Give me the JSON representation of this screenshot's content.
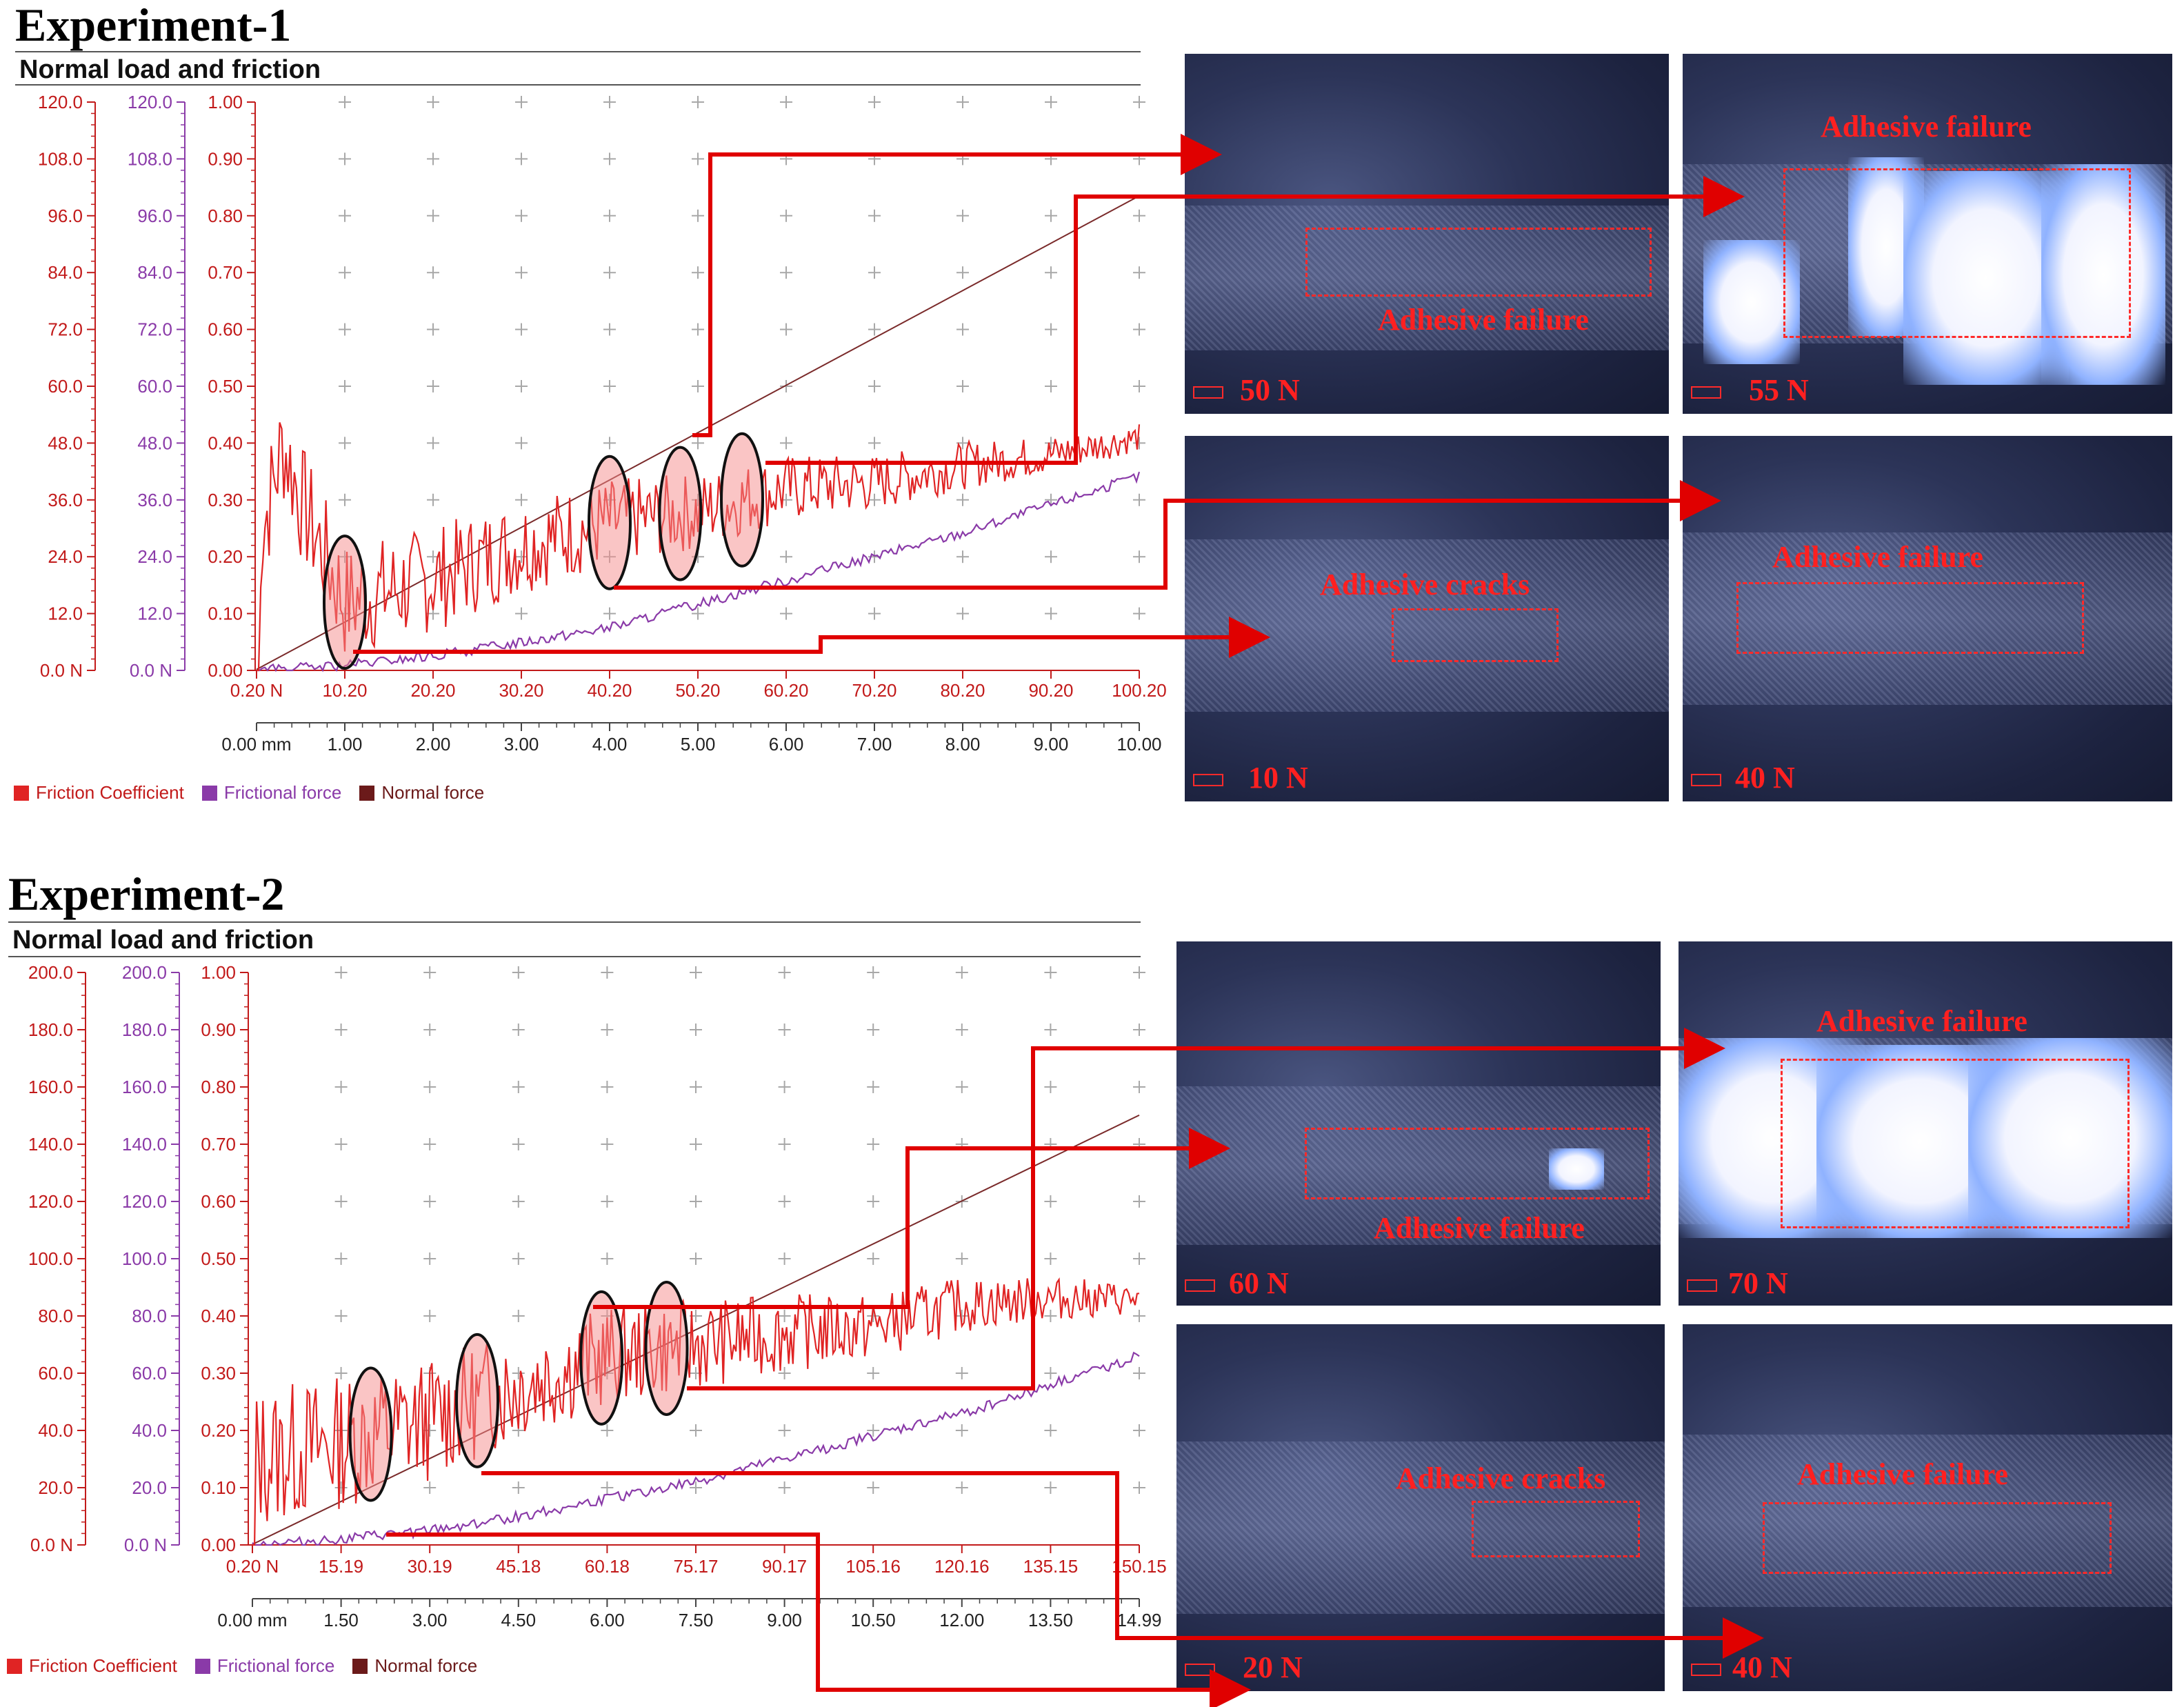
{
  "experiments": [
    {
      "id": "exp1",
      "heading": "Experiment-1",
      "chart_title": "Normal load and friction",
      "legend": [
        "Friction Coefficient",
        "Frictional force",
        "Normal force"
      ],
      "images": [
        {
          "load": "50 N",
          "label": "Adhesive failure"
        },
        {
          "load": "55 N",
          "label": "Adhesive failure"
        },
        {
          "load": "10 N",
          "label": "Adhesive cracks"
        },
        {
          "load": "40 N",
          "label": "Adhesive failure"
        }
      ]
    },
    {
      "id": "exp2",
      "heading": "Experiment-2",
      "chart_title": "Normal load and friction",
      "legend": [
        "Friction Coefficient",
        "Frictional force",
        "Normal force"
      ],
      "images": [
        {
          "load": "60 N",
          "label": "Adhesive failure"
        },
        {
          "load": "70 N",
          "label": "Adhesive failure"
        },
        {
          "load": "20 N",
          "label": "Adhesive cracks"
        },
        {
          "load": "40 N",
          "label": "Adhesive failure"
        }
      ]
    }
  ],
  "colors": {
    "friction_coefficient": "#e02424",
    "frictional_force": "#8a3aa8",
    "normal_force": "#7a2a2a",
    "annotation": "#e00000"
  },
  "chart_data": [
    {
      "type": "line",
      "title": "Normal load and friction",
      "grid": true,
      "legend_position": "bottom-left",
      "y_axes": [
        {
          "ticks": [
            "0.0 N",
            "12.0",
            "24.0",
            "36.0",
            "48.0",
            "60.0",
            "72.0",
            "84.0",
            "96.0",
            "108.0",
            "120.0"
          ],
          "range": [
            0,
            120
          ],
          "series": "Normal force"
        },
        {
          "ticks": [
            "0.0 N",
            "12.0",
            "24.0",
            "36.0",
            "48.0",
            "60.0",
            "72.0",
            "84.0",
            "96.0",
            "108.0",
            "120.0"
          ],
          "range": [
            0,
            120
          ],
          "series": "Frictional force"
        },
        {
          "ticks": [
            "0.00",
            "0.10",
            "0.20",
            "0.30",
            "0.40",
            "0.50",
            "0.60",
            "0.70",
            "0.80",
            "0.90",
            "1.00"
          ],
          "range": [
            0,
            1
          ],
          "series": "Friction Coefficient"
        }
      ],
      "x_axes": [
        {
          "ticks": [
            "0.20 N",
            "10.20",
            "20.20",
            "30.20",
            "40.20",
            "50.20",
            "60.20",
            "70.20",
            "80.20",
            "90.20",
            "100.20"
          ],
          "range": [
            0.2,
            100.2
          ]
        },
        {
          "ticks": [
            "0.00 mm",
            "1.00",
            "2.00",
            "3.00",
            "4.00",
            "5.00",
            "6.00",
            "7.00",
            "8.00",
            "9.00",
            "10.00"
          ],
          "range": [
            0,
            10
          ]
        }
      ],
      "series": [
        {
          "name": "Normal force",
          "x": [
            0,
            10
          ],
          "y": [
            0.2,
            100.2
          ]
        },
        {
          "name": "Friction Coefficient",
          "x": [
            0,
            0.3,
            0.5,
            1.0,
            2.0,
            3.0,
            4.0,
            5.0,
            6.0,
            7.0,
            8.0,
            9.0,
            10.0
          ],
          "y": [
            0.2,
            0.4,
            0.3,
            0.12,
            0.16,
            0.22,
            0.26,
            0.28,
            0.32,
            0.33,
            0.36,
            0.38,
            0.41
          ]
        },
        {
          "name": "Frictional force",
          "x": [
            0,
            1.0,
            2.0,
            3.0,
            4.0,
            5.0,
            6.0,
            7.0,
            8.0,
            9.0,
            10.0
          ],
          "y": [
            0,
            1,
            3,
            6,
            9,
            14,
            19,
            24,
            29,
            35,
            41
          ]
        }
      ],
      "markers": [
        1.0,
        4.0,
        4.8,
        5.5
      ]
    },
    {
      "type": "line",
      "title": "Normal load and friction",
      "grid": true,
      "legend_position": "bottom-left",
      "y_axes": [
        {
          "ticks": [
            "0.0 N",
            "20.0",
            "40.0",
            "60.0",
            "80.0",
            "100.0",
            "120.0",
            "140.0",
            "160.0",
            "180.0",
            "200.0"
          ],
          "range": [
            0,
            200
          ],
          "series": "Normal force"
        },
        {
          "ticks": [
            "0.0 N",
            "20.0",
            "40.0",
            "60.0",
            "80.0",
            "100.0",
            "120.0",
            "140.0",
            "160.0",
            "180.0",
            "200.0"
          ],
          "range": [
            0,
            200
          ],
          "series": "Frictional force"
        },
        {
          "ticks": [
            "0.00",
            "0.10",
            "0.20",
            "0.30",
            "0.40",
            "0.50",
            "0.60",
            "0.70",
            "0.80",
            "0.90",
            "1.00"
          ],
          "range": [
            0,
            1
          ],
          "series": "Friction Coefficient"
        }
      ],
      "x_axes": [
        {
          "ticks": [
            "0.20 N",
            "15.19",
            "30.19",
            "45.18",
            "60.18",
            "75.17",
            "90.17",
            "105.16",
            "120.16",
            "135.15",
            "150.15"
          ],
          "range": [
            0.2,
            150.15
          ]
        },
        {
          "ticks": [
            "0.00 mm",
            "1.50",
            "3.00",
            "4.50",
            "6.00",
            "7.50",
            "9.00",
            "10.50",
            "12.00",
            "13.50",
            "14.99"
          ],
          "range": [
            0,
            14.99
          ]
        }
      ],
      "series": [
        {
          "name": "Normal force",
          "x": [
            0,
            14.99
          ],
          "y": [
            0.2,
            150.15
          ]
        },
        {
          "name": "Friction Coefficient",
          "x": [
            0,
            1.5,
            3.0,
            4.5,
            6.0,
            7.5,
            9.0,
            10.5,
            12.0,
            13.5,
            14.99
          ],
          "y": [
            0.15,
            0.18,
            0.22,
            0.28,
            0.33,
            0.35,
            0.37,
            0.38,
            0.42,
            0.43,
            0.43
          ]
        },
        {
          "name": "Frictional force",
          "x": [
            0,
            1.5,
            3.0,
            4.5,
            6.0,
            7.5,
            9.0,
            10.5,
            12.0,
            13.5,
            14.99
          ],
          "y": [
            0,
            2,
            5,
            10,
            16,
            22,
            30,
            38,
            46,
            56,
            66
          ]
        }
      ],
      "markers": [
        2.0,
        3.8,
        5.9,
        7.0
      ]
    }
  ]
}
